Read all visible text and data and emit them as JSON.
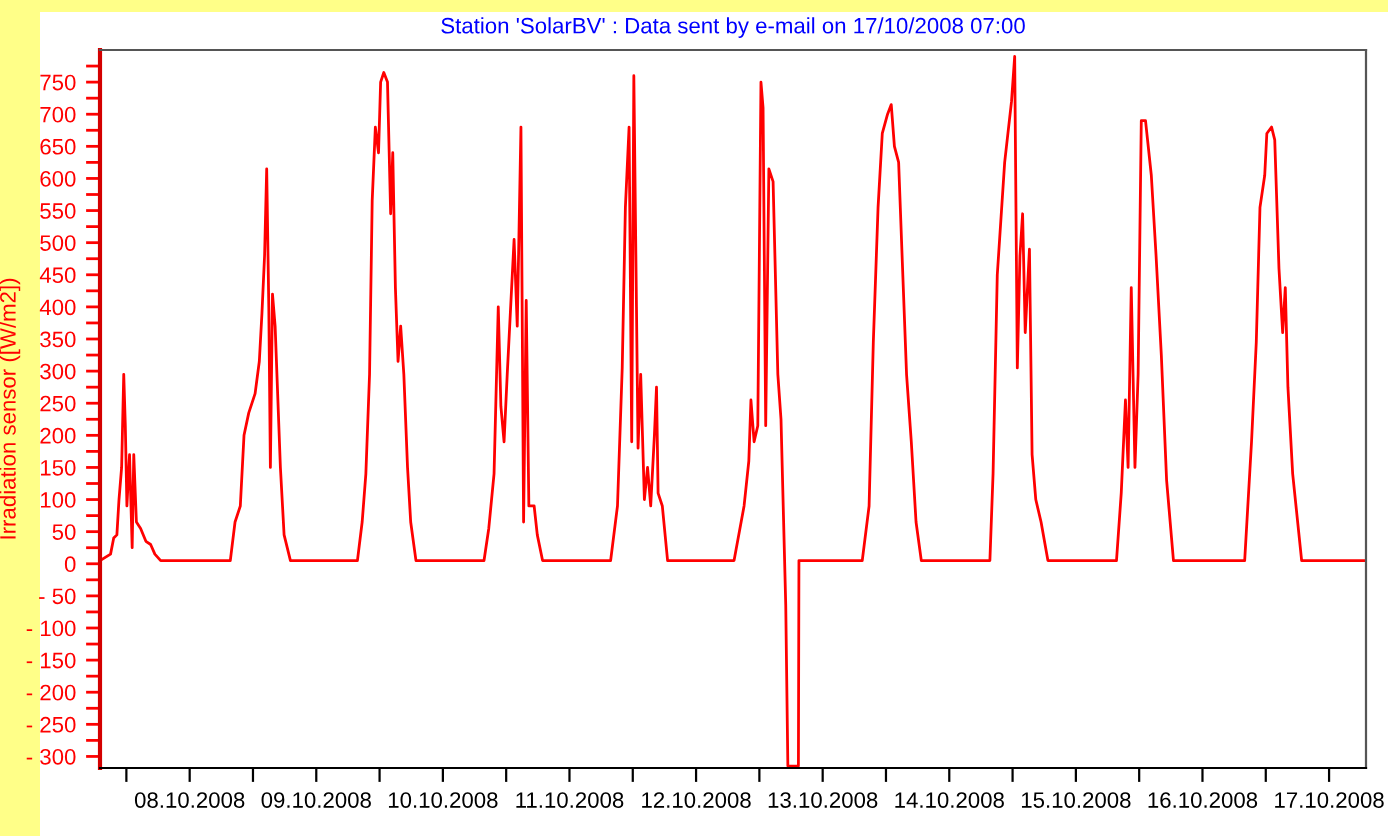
{
  "chart_data": {
    "type": "line",
    "title": "Station 'SolarBV' : Data sent by e-mail on 17/10/2008 07:00",
    "ylabel": "Irradiation sensor ([W/m2])",
    "xlim": [
      "2008-10-07T07:00",
      "2008-10-17T07:00"
    ],
    "xticks": [
      {
        "value": "2008-10-07T12:00",
        "label": null
      },
      {
        "value": "2008-10-08",
        "label": "08.10.2008"
      },
      {
        "value": "2008-10-08T12:00",
        "label": null
      },
      {
        "value": "2008-10-09",
        "label": "09.10.2008"
      },
      {
        "value": "2008-10-09T12:00",
        "label": null
      },
      {
        "value": "2008-10-10",
        "label": "10.10.2008"
      },
      {
        "value": "2008-10-10T12:00",
        "label": null
      },
      {
        "value": "2008-10-11",
        "label": "11.10.2008"
      },
      {
        "value": "2008-10-11T12:00",
        "label": null
      },
      {
        "value": "2008-10-12",
        "label": "12.10.2008"
      },
      {
        "value": "2008-10-12T12:00",
        "label": null
      },
      {
        "value": "2008-10-13",
        "label": "13.10.2008"
      },
      {
        "value": "2008-10-13T12:00",
        "label": null
      },
      {
        "value": "2008-10-14",
        "label": "14.10.2008"
      },
      {
        "value": "2008-10-14T12:00",
        "label": null
      },
      {
        "value": "2008-10-15",
        "label": "15.10.2008"
      },
      {
        "value": "2008-10-15T12:00",
        "label": null
      },
      {
        "value": "2008-10-16",
        "label": "16.10.2008"
      },
      {
        "value": "2008-10-16T12:00",
        "label": null
      },
      {
        "value": "2008-10-17",
        "label": "17.10.2008"
      }
    ],
    "ylim": [
      -318,
      800
    ],
    "yticks": [
      {
        "value": -300,
        "label": "- 300"
      },
      {
        "value": -275,
        "label": null
      },
      {
        "value": -250,
        "label": "- 250"
      },
      {
        "value": -225,
        "label": null
      },
      {
        "value": -200,
        "label": "- 200"
      },
      {
        "value": -175,
        "label": null
      },
      {
        "value": -150,
        "label": "- 150"
      },
      {
        "value": -125,
        "label": null
      },
      {
        "value": -100,
        "label": "- 100"
      },
      {
        "value": -75,
        "label": null
      },
      {
        "value": -50,
        "label": "- 50"
      },
      {
        "value": -25,
        "label": null
      },
      0,
      {
        "value": 25,
        "label": null
      },
      50,
      {
        "value": 75,
        "label": null
      },
      100,
      {
        "value": 125,
        "label": null
      },
      150,
      {
        "value": 175,
        "label": null
      },
      200,
      {
        "value": 225,
        "label": null
      },
      250,
      {
        "value": 275,
        "label": null
      },
      300,
      {
        "value": 325,
        "label": null
      },
      350,
      {
        "value": 375,
        "label": null
      },
      400,
      {
        "value": 425,
        "label": null
      },
      450,
      {
        "value": 475,
        "label": null
      },
      500,
      {
        "value": 525,
        "label": null
      },
      550,
      {
        "value": 575,
        "label": null
      },
      600,
      {
        "value": 625,
        "label": null
      },
      650,
      {
        "value": 675,
        "label": null
      },
      700,
      {
        "value": 725,
        "label": null
      },
      750,
      {
        "value": 775,
        "label": null
      }
    ],
    "marker": "none",
    "line_style": "solid",
    "series": [
      {
        "color": "#ff0000",
        "x": [
          "2008-10-07T07:00",
          "2008-10-07T09:00",
          "2008-10-07T09:36",
          "2008-10-07T10:12",
          "2008-10-07T10:36",
          "2008-10-07T11:06",
          "2008-10-07T11:30",
          "2008-10-07T11:48",
          "2008-10-07T12:06",
          "2008-10-07T12:36",
          "2008-10-07T13:06",
          "2008-10-07T13:24",
          "2008-10-07T13:54",
          "2008-10-07T14:42",
          "2008-10-07T15:42",
          "2008-10-07T16:36",
          "2008-10-07T17:24",
          "2008-10-07T18:30",
          "2008-10-08T07:42",
          "2008-10-08T08:36",
          "2008-10-08T09:36",
          "2008-10-08T10:18",
          "2008-10-08T11:12",
          "2008-10-08T12:24",
          "2008-10-08T13:12",
          "2008-10-08T13:42",
          "2008-10-08T14:12",
          "2008-10-08T14:36",
          "2008-10-08T15:00",
          "2008-10-08T15:18",
          "2008-10-08T15:42",
          "2008-10-08T16:12",
          "2008-10-08T17:12",
          "2008-10-08T17:54",
          "2008-10-08T19:06",
          "2008-10-09T07:48",
          "2008-10-09T08:42",
          "2008-10-09T09:24",
          "2008-10-09T10:06",
          "2008-10-09T10:36",
          "2008-10-09T11:12",
          "2008-10-09T11:48",
          "2008-10-09T12:12",
          "2008-10-09T12:48",
          "2008-10-09T13:30",
          "2008-10-09T14:06",
          "2008-10-09T14:30",
          "2008-10-09T15:00",
          "2008-10-09T15:30",
          "2008-10-09T16:00",
          "2008-10-09T16:36",
          "2008-10-09T17:18",
          "2008-10-09T17:54",
          "2008-10-09T18:54",
          "2008-10-10T07:48",
          "2008-10-10T08:42",
          "2008-10-10T09:42",
          "2008-10-10T10:30",
          "2008-10-10T11:00",
          "2008-10-10T11:36",
          "2008-10-10T12:12",
          "2008-10-10T13:30",
          "2008-10-10T14:06",
          "2008-10-10T14:48",
          "2008-10-10T15:18",
          "2008-10-10T15:48",
          "2008-10-10T16:18",
          "2008-10-10T17:18",
          "2008-10-10T17:54",
          "2008-10-10T18:54",
          "2008-10-11T07:48",
          "2008-10-11T09:06",
          "2008-10-11T10:00",
          "2008-10-11T10:36",
          "2008-10-11T11:18",
          "2008-10-11T11:48",
          "2008-10-11T12:12",
          "2008-10-11T12:42",
          "2008-10-11T13:00",
          "2008-10-11T13:30",
          "2008-10-11T14:12",
          "2008-10-11T14:48",
          "2008-10-11T15:24",
          "2008-10-11T16:06",
          "2008-10-11T16:30",
          "2008-10-11T16:48",
          "2008-10-11T17:36",
          "2008-10-11T18:36",
          "2008-10-12T07:12",
          "2008-10-12T09:06",
          "2008-10-12T10:00",
          "2008-10-12T10:24",
          "2008-10-12T11:00",
          "2008-10-12T11:42",
          "2008-10-12T12:18",
          "2008-10-12T12:42",
          "2008-10-12T13:12",
          "2008-10-12T13:48",
          "2008-10-12T14:36",
          "2008-10-12T15:30",
          "2008-10-12T16:06",
          "2008-10-12T17:00",
          "2008-10-12T17:24",
          "2008-10-12T19:24",
          "2008-10-12T19:30",
          "2008-10-13T07:30",
          "2008-10-13T08:48",
          "2008-10-13T09:36",
          "2008-10-13T10:30",
          "2008-10-13T11:18",
          "2008-10-13T12:18",
          "2008-10-13T13:00",
          "2008-10-13T13:36",
          "2008-10-13T14:24",
          "2008-10-13T15:06",
          "2008-10-13T15:54",
          "2008-10-13T16:48",
          "2008-10-13T17:42",
          "2008-10-13T18:42",
          "2008-10-14T07:42",
          "2008-10-14T08:18",
          "2008-10-14T09:06",
          "2008-10-14T10:30",
          "2008-10-14T11:48",
          "2008-10-14T12:24",
          "2008-10-14T12:54",
          "2008-10-14T13:24",
          "2008-10-14T13:54",
          "2008-10-14T14:24",
          "2008-10-14T15:12",
          "2008-10-14T15:42",
          "2008-10-14T16:24",
          "2008-10-14T17:24",
          "2008-10-14T18:42",
          "2008-10-15T07:42",
          "2008-10-15T08:36",
          "2008-10-15T09:24",
          "2008-10-15T09:54",
          "2008-10-15T10:30",
          "2008-10-15T11:12",
          "2008-10-15T11:48",
          "2008-10-15T12:24",
          "2008-10-15T13:12",
          "2008-10-15T14:18",
          "2008-10-15T15:12",
          "2008-10-15T16:12",
          "2008-10-15T17:12",
          "2008-10-15T18:30",
          "2008-10-16T08:00",
          "2008-10-16T09:18",
          "2008-10-16T10:12",
          "2008-10-16T10:54",
          "2008-10-16T11:48",
          "2008-10-16T12:12",
          "2008-10-16T13:06",
          "2008-10-16T13:42",
          "2008-10-16T14:30",
          "2008-10-16T15:12",
          "2008-10-16T15:42",
          "2008-10-16T16:12",
          "2008-10-16T17:06",
          "2008-10-16T18:48",
          "2008-10-17T07:00"
        ],
        "values": [
          5,
          15,
          40,
          45,
          100,
          150,
          295,
          215,
          90,
          170,
          25,
          170,
          65,
          55,
          35,
          30,
          15,
          5,
          5,
          65,
          90,
          200,
          235,
          265,
          315,
          390,
          480,
          615,
          400,
          150,
          420,
          370,
          150,
          45,
          5,
          5,
          65,
          140,
          295,
          565,
          680,
          640,
          750,
          765,
          750,
          545,
          640,
          430,
          315,
          370,
          295,
          150,
          65,
          5,
          5,
          55,
          140,
          400,
          245,
          190,
          295,
          505,
          370,
          680,
          65,
          410,
          90,
          90,
          45,
          5,
          5,
          90,
          305,
          555,
          680,
          190,
          760,
          400,
          180,
          295,
          100,
          150,
          90,
          200,
          275,
          110,
          90,
          5,
          5,
          90,
          160,
          255,
          190,
          215,
          750,
          710,
          215,
          615,
          595,
          295,
          225,
          -65,
          -315,
          -315,
          5,
          5,
          90,
          345,
          555,
          670,
          700,
          715,
          650,
          625,
          470,
          295,
          190,
          65,
          5,
          5,
          140,
          450,
          625,
          720,
          790,
          305,
          480,
          545,
          360,
          490,
          170,
          100,
          65,
          5,
          5,
          110,
          255,
          150,
          430,
          150,
          295,
          690,
          690,
          605,
          480,
          325,
          130,
          5,
          5,
          190,
          345,
          555,
          605,
          670,
          680,
          660,
          460,
          360,
          430,
          275,
          140,
          5,
          5
        ]
      }
    ]
  }
}
